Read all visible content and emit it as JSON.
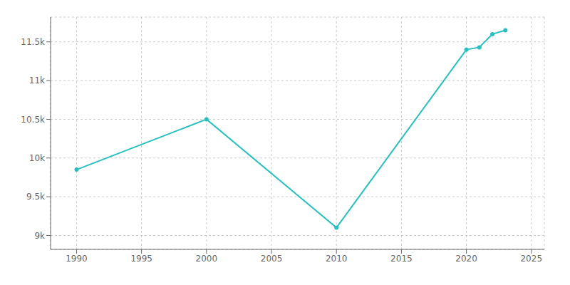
{
  "chart_data": {
    "type": "line",
    "x": [
      1990,
      2000,
      2010,
      2020,
      2021,
      2022,
      2023
    ],
    "values": [
      9850,
      10500,
      9100,
      11400,
      11430,
      11600,
      11650
    ],
    "color": "#29bfbf",
    "marker": "circle",
    "xlim": [
      1988,
      2026
    ],
    "xticks": [
      1990,
      1995,
      2000,
      2005,
      2010,
      2015,
      2020,
      2025
    ],
    "ylim": [
      8820,
      11820
    ],
    "yticks": [
      {
        "value": 9000,
        "label": "9k"
      },
      {
        "value": 9500,
        "label": "9.5k"
      },
      {
        "value": 10000,
        "label": "10k"
      },
      {
        "value": 10500,
        "label": "10.5k"
      },
      {
        "value": 11000,
        "label": "11k"
      },
      {
        "value": 11500,
        "label": "11.5k"
      }
    ],
    "grid": true
  }
}
